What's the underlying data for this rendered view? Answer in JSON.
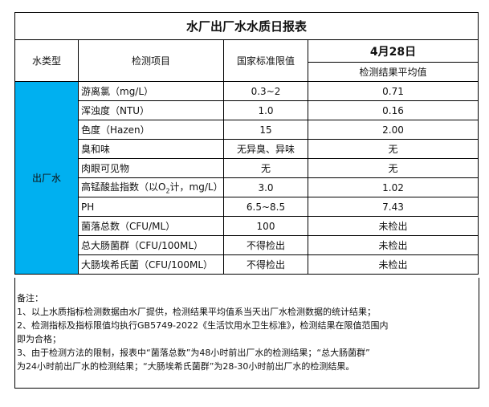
{
  "title": "水厂出厂水水质日报表",
  "headers": {
    "water_type": "水类型",
    "item": "检测项目",
    "standard": "国家标准限值",
    "date": "4月28日",
    "result": "检测结果平均值"
  },
  "water_type": "出厂水",
  "rows": [
    {
      "item": "游离氯（mg/L）",
      "standard": "0.3~2",
      "result": "0.71"
    },
    {
      "item": "浑浊度（NTU）",
      "standard": "1.0",
      "result": "0.16"
    },
    {
      "item": "色度（Hazen）",
      "standard": "15",
      "result": "2.00"
    },
    {
      "item": "臭和味",
      "standard": "无异臭、异味",
      "result": "无"
    },
    {
      "item": "肉眼可见物",
      "standard": "无",
      "result": "无"
    },
    {
      "item_pre": "高锰酸盐指数（以O",
      "item_sub": "2",
      "item_post": "计，mg/L）",
      "standard": "3.0",
      "result": "1.02"
    },
    {
      "item": "PH",
      "standard": "6.5~8.5",
      "result": "7.43"
    },
    {
      "item": "菌落总数（CFU/ML）",
      "standard": "100",
      "result": "未检出"
    },
    {
      "item": "总大肠菌群（CFU/100ML）",
      "standard": "不得检出",
      "result": "未检出"
    },
    {
      "item": "大肠埃希氏菌（CFU/100ML）",
      "standard": "不得检出",
      "result": "未检出"
    }
  ],
  "notes": [
    "备注：",
    "1、以上水质指标检测数据由水厂提供，检测结果平均值系当天出厂水检测数据的统计结果；",
    "2、检测指标及指标限值均执行GB5749-2022《生活饮用水卫生标准》，检测结果在限值范围内",
    "即为合格；",
    "3、由于检测方法的限制，报表中“菌落总数”为48小时前出厂水的检测结果；“总大肠菌群”",
    "为24小时前出厂水的检测结果；“大肠埃希氏菌群”为28-30小时前出厂水的检测结果。"
  ],
  "colors": {
    "water_type_cell": "#00b0f0"
  }
}
